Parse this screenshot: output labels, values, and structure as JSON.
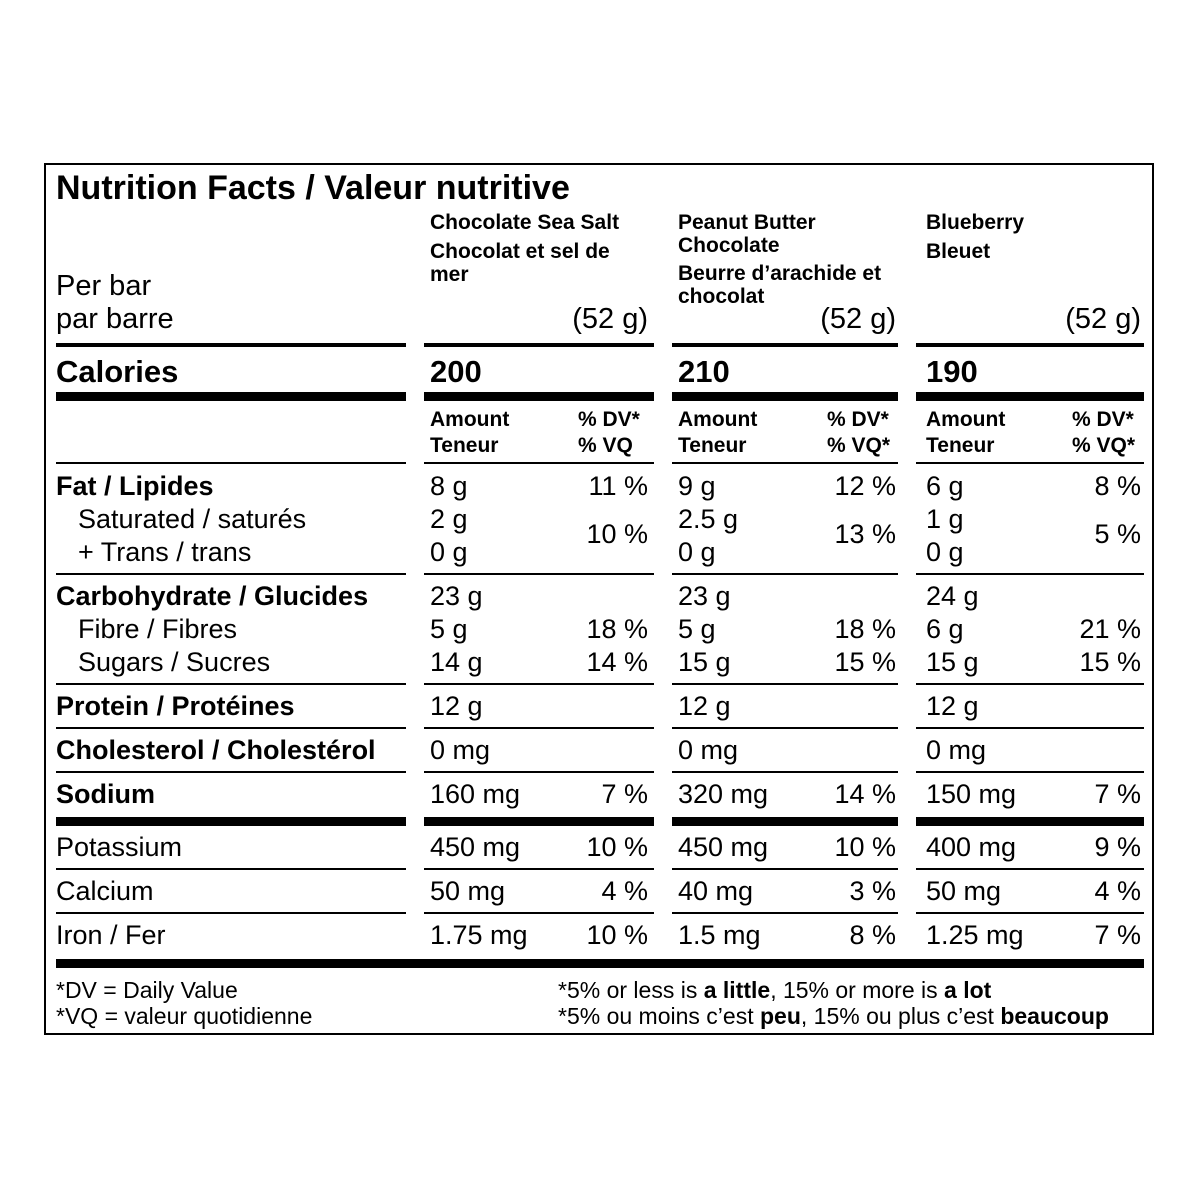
{
  "title": "Nutrition Facts / Valeur nutritive",
  "per": {
    "line1": "Per bar",
    "line2": "par barre"
  },
  "columns": [
    {
      "name_en": "Chocolate Sea Salt",
      "name_fr": "Chocolat et sel de mer",
      "serving": "(52 g)",
      "calories": "200"
    },
    {
      "name_en": "Peanut Butter Chocolate",
      "name_fr": "Beurre d’arachide et chocolat",
      "serving": "(52 g)",
      "calories": "210"
    },
    {
      "name_en": "Blueberry",
      "name_fr": "Bleuet",
      "serving": "(52 g)",
      "calories": "190"
    }
  ],
  "calories_label": "Calories",
  "subheader": {
    "amount": "Amount",
    "teneur": "Teneur",
    "dv": "% DV*",
    "vq": "% VQ",
    "vq_star": "% VQ*"
  },
  "rows": {
    "fat": {
      "label": "Fat / Lipides",
      "v": [
        "8 g",
        "9 g",
        "6 g"
      ],
      "p": [
        "11 %",
        "12 %",
        "8 %"
      ]
    },
    "saturated": {
      "label": "Saturated / saturés",
      "v": [
        "2 g",
        "2.5 g",
        "1 g"
      ]
    },
    "trans": {
      "label": "+ Trans / trans",
      "v": [
        "0 g",
        "0 g",
        "0 g"
      ]
    },
    "sat_trans_pct": [
      "10 %",
      "13 %",
      "5 %"
    ],
    "carb": {
      "label": "Carbohydrate / Glucides",
      "v": [
        "23 g",
        "23 g",
        "24 g"
      ]
    },
    "fibre": {
      "label": "Fibre / Fibres",
      "v": [
        "5 g",
        "5 g",
        "6 g"
      ],
      "p": [
        "18 %",
        "18 %",
        "21 %"
      ]
    },
    "sugars": {
      "label": "Sugars / Sucres",
      "v": [
        "14 g",
        "15 g",
        "15 g"
      ],
      "p": [
        "14 %",
        "15 %",
        "15 %"
      ]
    },
    "protein": {
      "label": "Protein / Protéines",
      "v": [
        "12 g",
        "12 g",
        "12 g"
      ]
    },
    "cholesterol": {
      "label": "Cholesterol / Cholestérol",
      "v": [
        "0 mg",
        "0 mg",
        "0 mg"
      ]
    },
    "sodium": {
      "label": "Sodium",
      "v": [
        "160 mg",
        "320 mg",
        "150 mg"
      ],
      "p": [
        "7 %",
        "14 %",
        "7 %"
      ]
    },
    "potassium": {
      "label": "Potassium",
      "v": [
        "450 mg",
        "450 mg",
        "400 mg"
      ],
      "p": [
        "10 %",
        "10 %",
        "9 %"
      ]
    },
    "calcium": {
      "label": "Calcium",
      "v": [
        "50 mg",
        "40 mg",
        "50 mg"
      ],
      "p": [
        "4 %",
        "3 %",
        "4 %"
      ]
    },
    "iron": {
      "label": "Iron / Fer",
      "v": [
        "1.75 mg",
        "1.5 mg",
        "1.25 mg"
      ],
      "p": [
        "10 %",
        "8 %",
        "7 %"
      ]
    }
  },
  "footer": {
    "dv_def": "*DV = Daily Value",
    "vq_def": "*VQ = valeur quotidienne",
    "en": {
      "pre": "*5% or less is ",
      "b1": "a little",
      "mid": ", 15% or more is ",
      "b2": "a lot"
    },
    "fr": {
      "pre": "*5% ou moins c’est ",
      "b1": "peu",
      "mid": ", 15% ou plus c’est ",
      "b2": "beaucoup"
    }
  }
}
